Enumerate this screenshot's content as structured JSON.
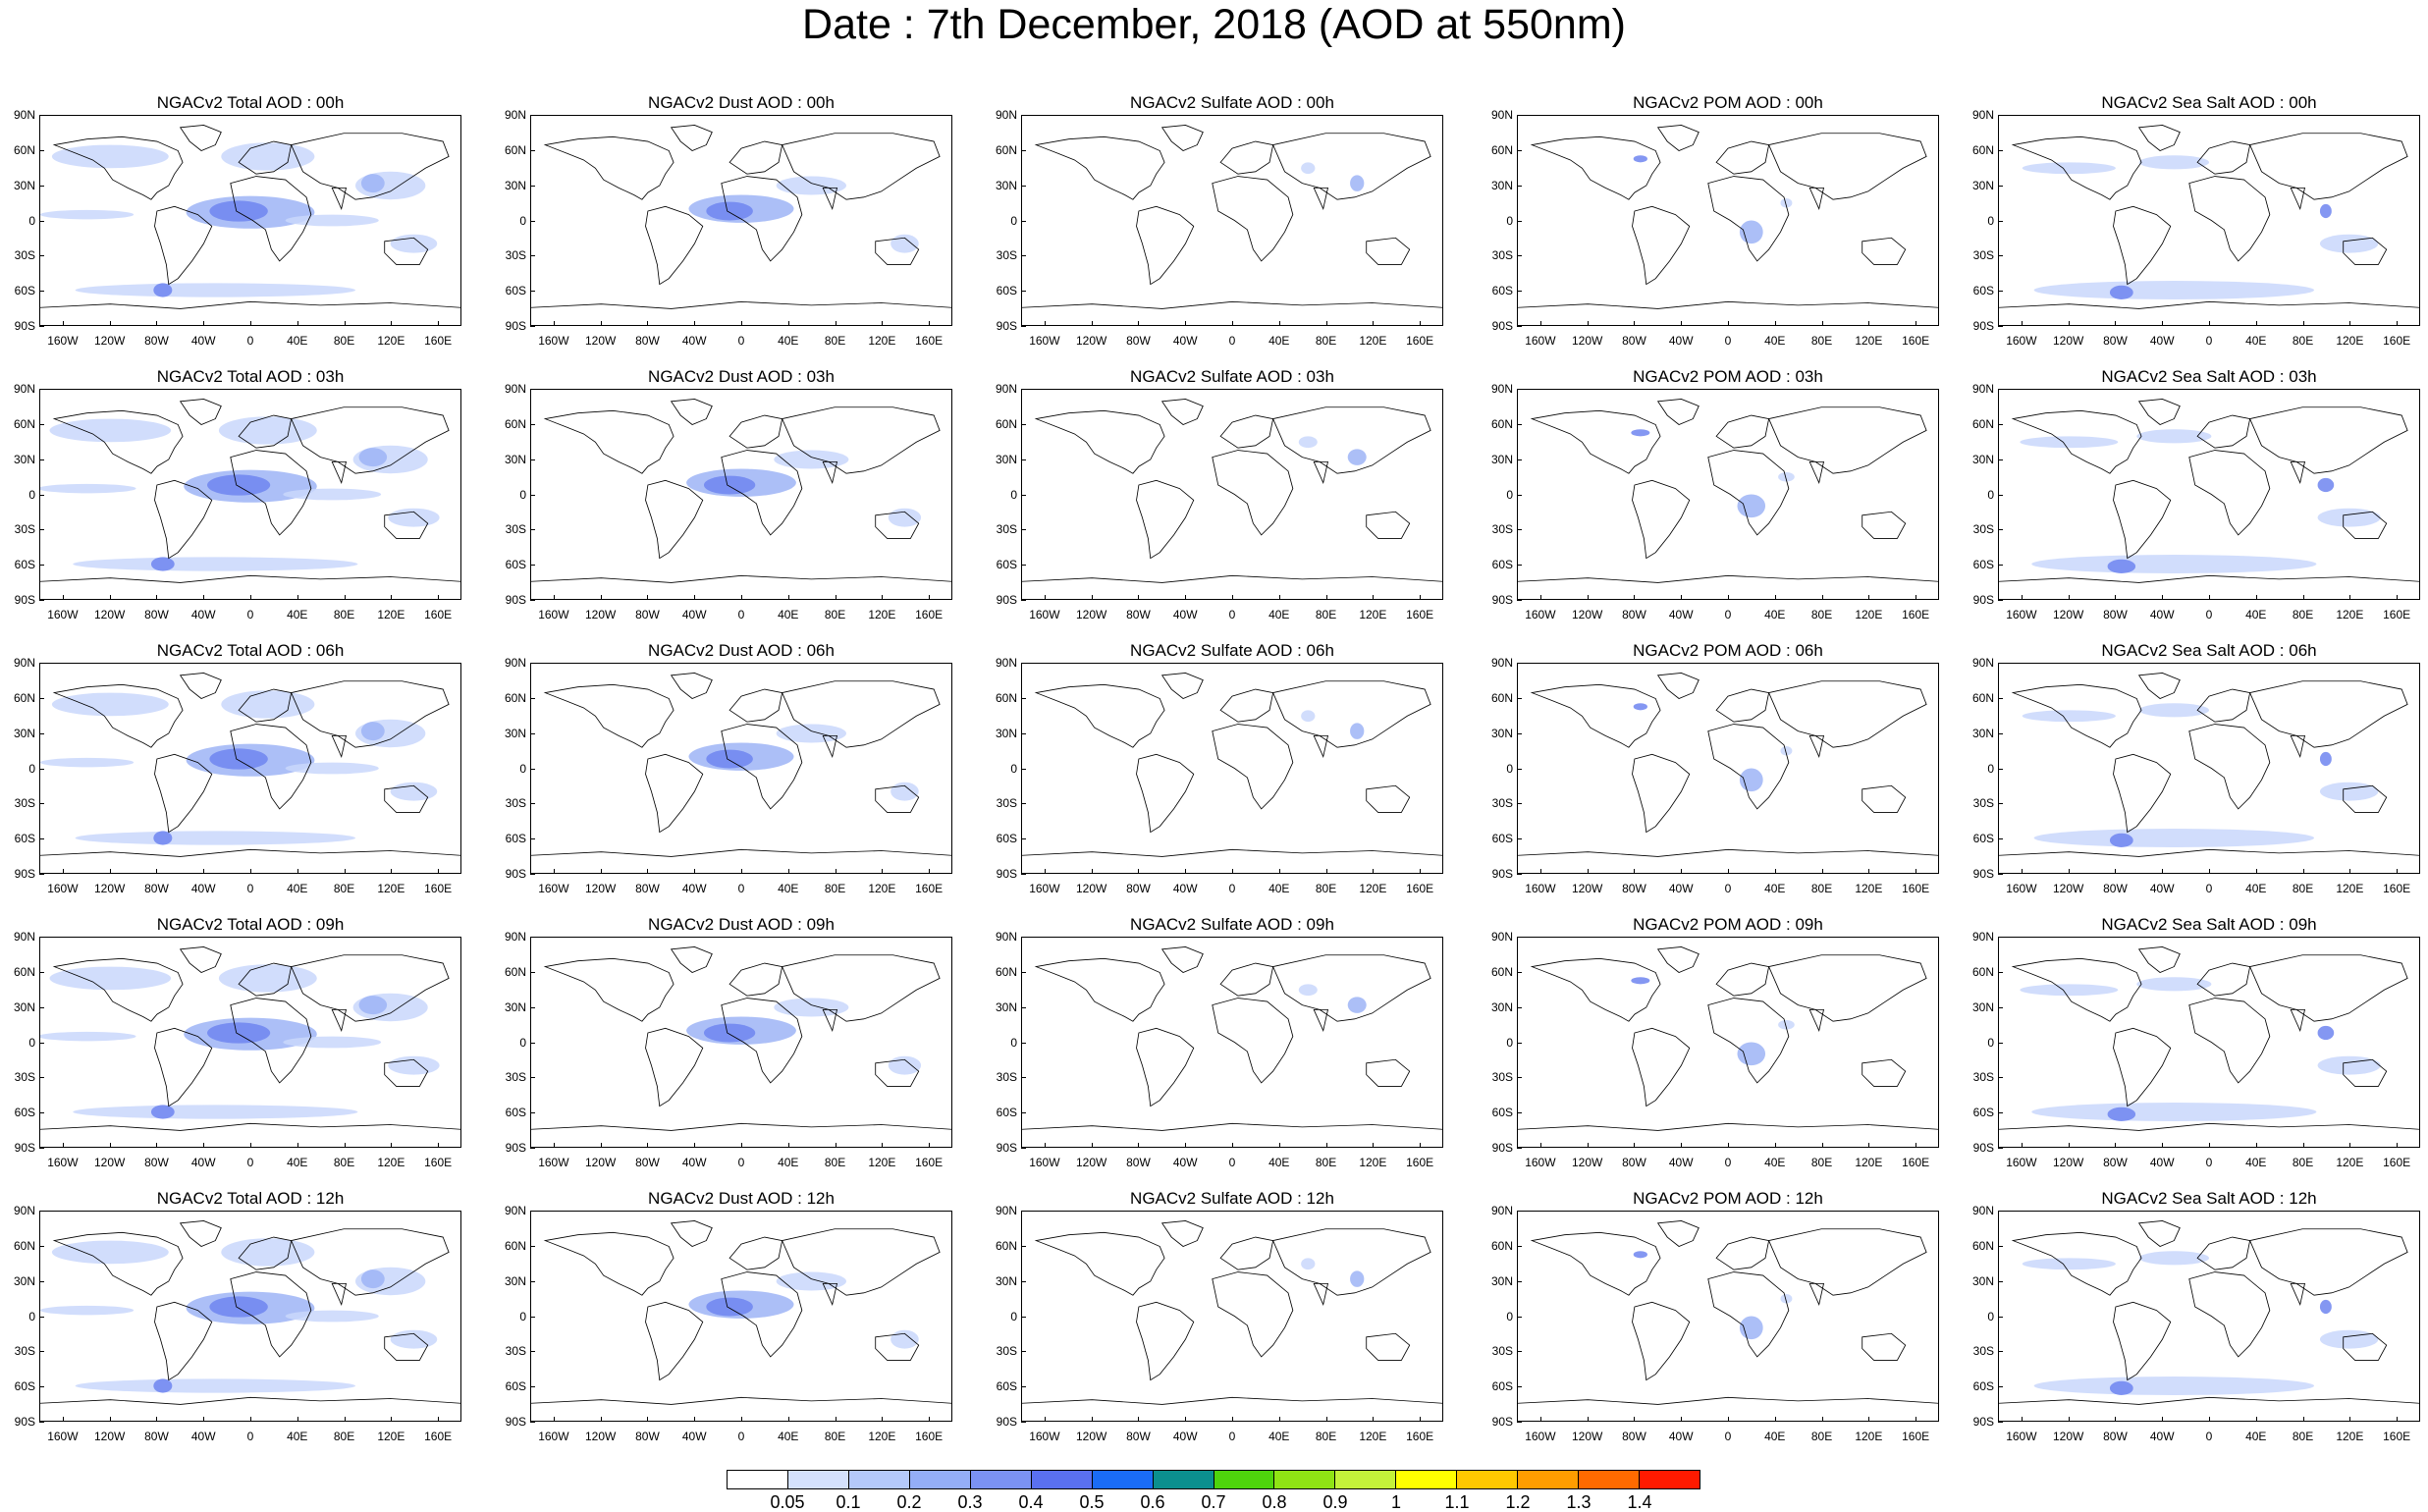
{
  "title": "Date : 7th December, 2018 (AOD at 550nm)",
  "axes": {
    "lat_labels": [
      "90N",
      "60N",
      "30N",
      "0",
      "30S",
      "60S",
      "90S"
    ],
    "lon_labels": [
      "160W",
      "120W",
      "80W",
      "40W",
      "0",
      "40E",
      "80E",
      "120E",
      "160E"
    ]
  },
  "panels": [
    [
      "NGACv2 Total AOD : 00h",
      "NGACv2 Dust AOD : 00h",
      "NGACv2 Sulfate AOD : 00h",
      "NGACv2 POM AOD : 00h",
      "NGACv2 Sea Salt AOD : 00h"
    ],
    [
      "NGACv2 Total AOD : 03h",
      "NGACv2 Dust AOD : 03h",
      "NGACv2 Sulfate AOD : 03h",
      "NGACv2 POM AOD : 03h",
      "NGACv2 Sea Salt AOD : 03h"
    ],
    [
      "NGACv2 Total AOD : 06h",
      "NGACv2 Dust AOD : 06h",
      "NGACv2 Sulfate AOD : 06h",
      "NGACv2 POM AOD : 06h",
      "NGACv2 Sea Salt AOD : 06h"
    ],
    [
      "NGACv2 Total AOD : 09h",
      "NGACv2 Dust AOD : 09h",
      "NGACv2 Sulfate AOD : 09h",
      "NGACv2 POM AOD : 09h",
      "NGACv2 Sea Salt  AOD : 09h"
    ],
    [
      "NGACv2 Total AOD  : 12h",
      "NGACv2 Dust AOD : 12h",
      "NGACv2 Sulfate AOD : 12h",
      "NGACv2 POM  AOD : 12h",
      "NGACv2 Sea Salt  AOD : 12h"
    ]
  ],
  "colorbar": {
    "labels": [
      "0.05",
      "0.1",
      "0.2",
      "0.3",
      "0.4",
      "0.5",
      "0.6",
      "0.7",
      "0.8",
      "0.9",
      "1",
      "1.1",
      "1.2",
      "1.3",
      "1.4"
    ],
    "colors": [
      "#ffffff",
      "#d4e1fc",
      "#b4c9fa",
      "#94aef7",
      "#7b92f3",
      "#5a70f0",
      "#1a6cf6",
      "#0b8f8e",
      "#4ed40c",
      "#8fe414",
      "#c4f23a",
      "#ffff00",
      "#ffc800",
      "#ff9d00",
      "#ff6a00",
      "#ff1a00"
    ]
  },
  "plume_colors": {
    "light": "#c9d7fb",
    "medium": "#9db4f6",
    "dark": "#6f85f0"
  }
}
